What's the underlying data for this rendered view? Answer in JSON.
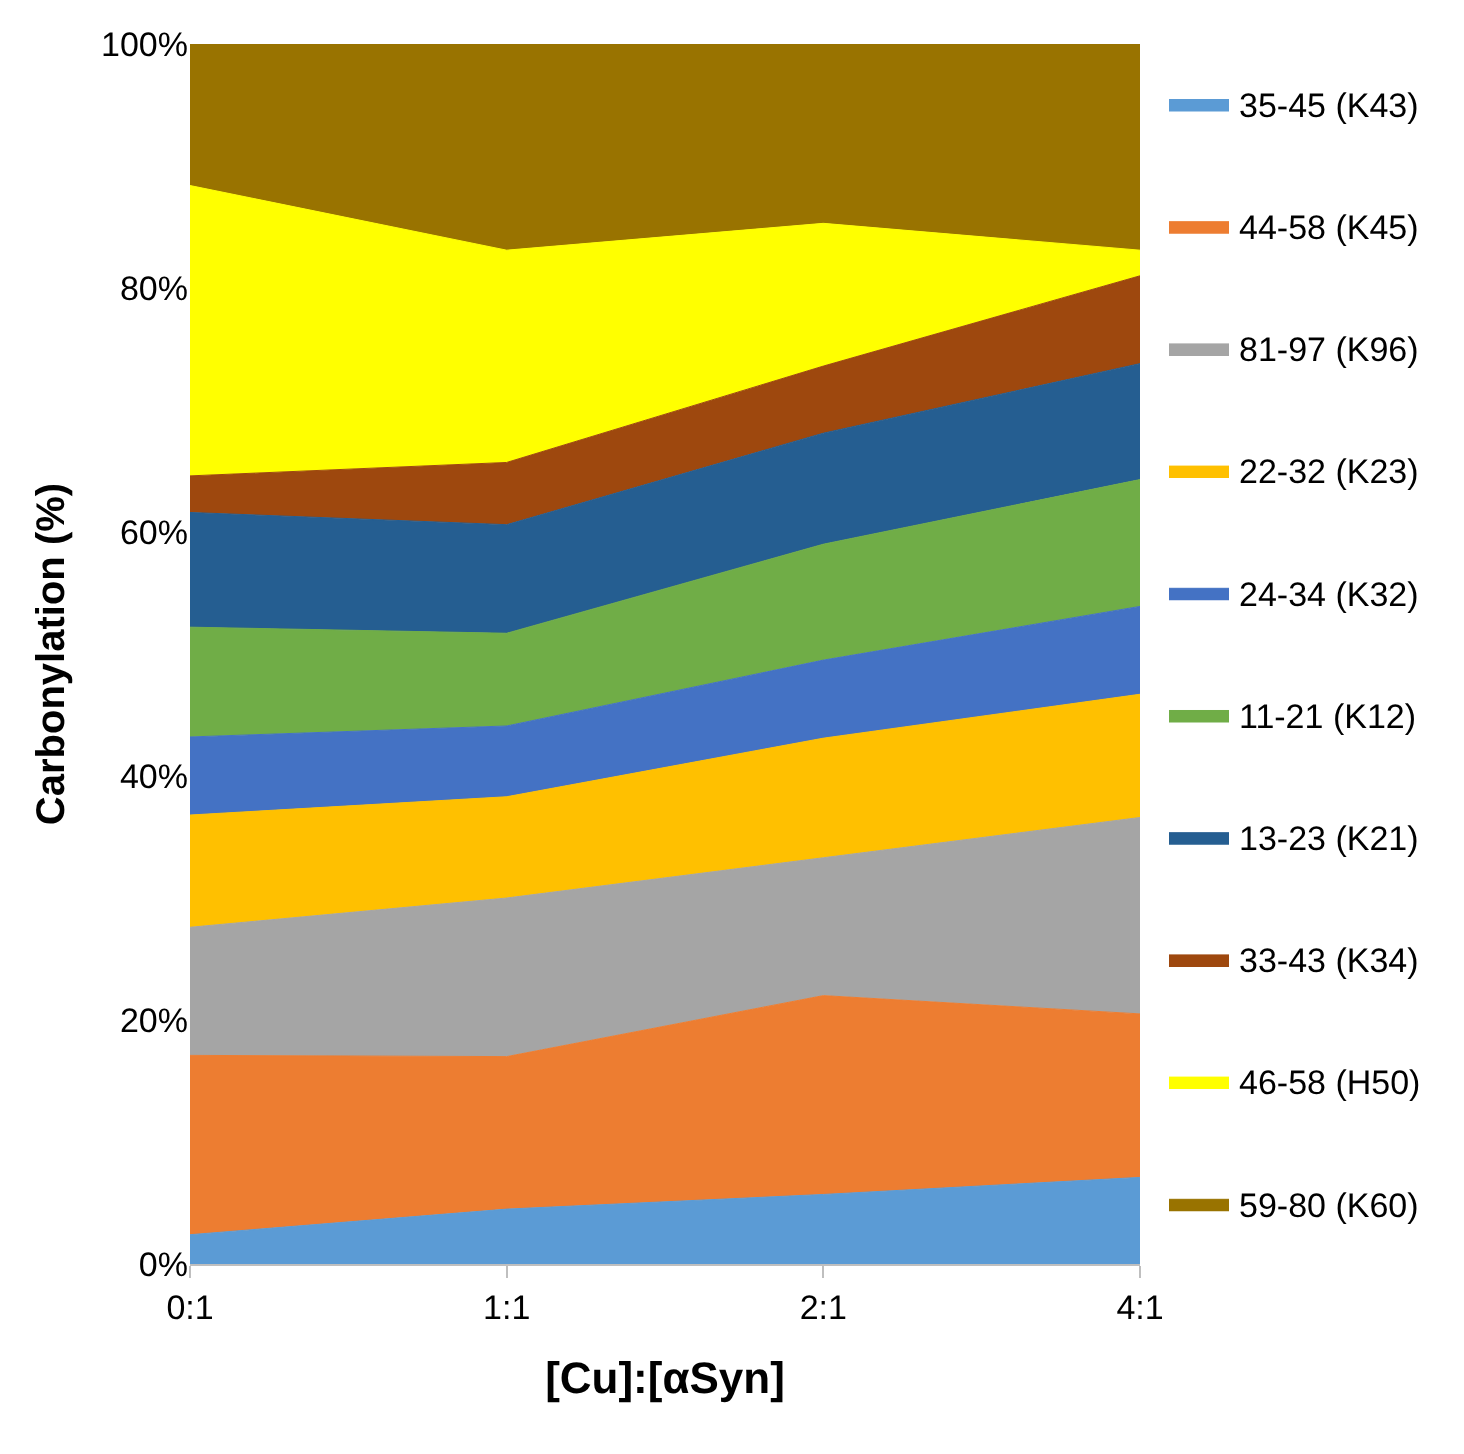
{
  "chart_data": {
    "type": "area",
    "stacked": true,
    "xlabel": "[Cu]:[αSyn]",
    "ylabel": "Carbonylation (%)",
    "categories": [
      "0:1",
      "1:1",
      "2:1",
      "4:1"
    ],
    "ylim": [
      0,
      100
    ],
    "yticks": [
      {
        "value": 0,
        "label": "0%"
      },
      {
        "value": 20,
        "label": "20%"
      },
      {
        "value": 40,
        "label": "40%"
      },
      {
        "value": 60,
        "label": "60%"
      },
      {
        "value": 80,
        "label": "80%"
      },
      {
        "value": 100,
        "label": "100%"
      }
    ],
    "legend": "right",
    "series": [
      {
        "name": "35-45 (K43)",
        "color": "#5b9bd5",
        "values": [
          2.4,
          4.5,
          5.7,
          7.1
        ]
      },
      {
        "name": "44-58 (K45)",
        "color": "#ed7d31",
        "values": [
          14.7,
          12.5,
          16.3,
          13.4
        ]
      },
      {
        "name": "81-97 (K96)",
        "color": "#a5a5a5",
        "values": [
          10.5,
          13.0,
          11.3,
          16.1
        ]
      },
      {
        "name": "22-32 (K23)",
        "color": "#ffc000",
        "values": [
          9.2,
          8.3,
          9.8,
          10.1
        ]
      },
      {
        "name": "24-34 (K32)",
        "color": "#4472c4",
        "values": [
          6.4,
          5.8,
          6.4,
          7.2
        ]
      },
      {
        "name": "11-21 (K12)",
        "color": "#70ad47",
        "values": [
          9.0,
          7.6,
          9.5,
          10.4
        ]
      },
      {
        "name": "13-23 (K21)",
        "color": "#255e91",
        "values": [
          9.4,
          8.9,
          9.1,
          9.5
        ]
      },
      {
        "name": "33-43 (K34)",
        "color": "#9e480e",
        "values": [
          3.0,
          5.1,
          5.5,
          7.2
        ]
      },
      {
        "name": "46-58 (H50)",
        "color": "#ffff00",
        "values": [
          23.8,
          17.4,
          11.7,
          2.1
        ]
      },
      {
        "name": "59-80 (K60)",
        "color": "#997300",
        "values": [
          11.6,
          16.9,
          14.7,
          16.9
        ]
      }
    ]
  }
}
